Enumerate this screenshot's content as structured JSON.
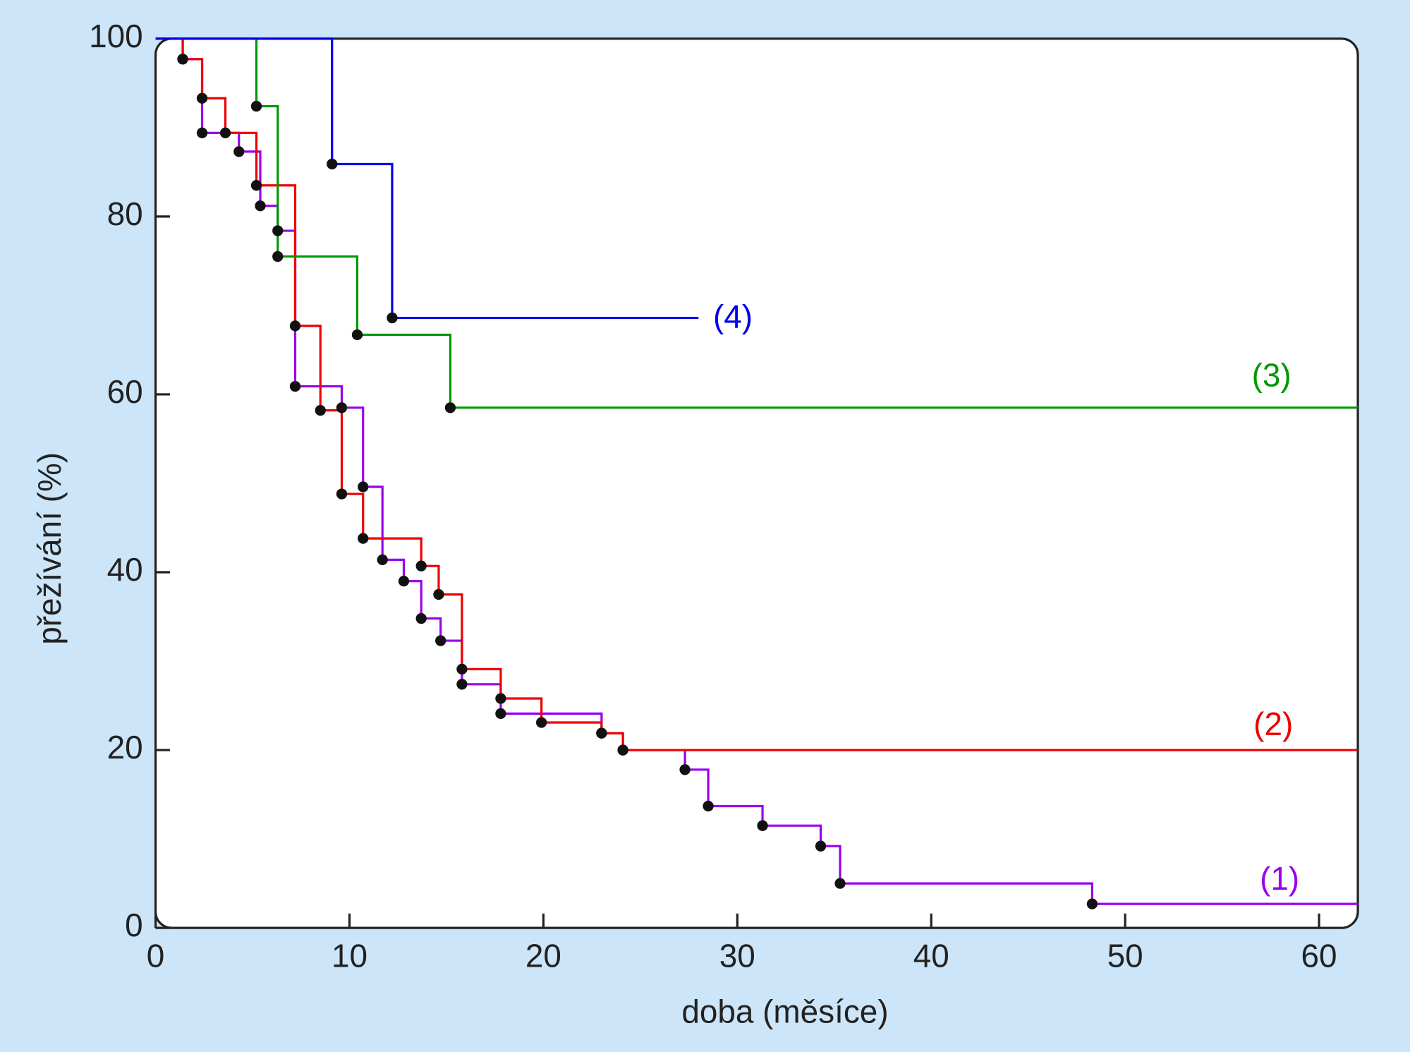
{
  "chart_data": {
    "type": "step",
    "xlabel": "doba (měsíce)",
    "ylabel": "přežívání (%)",
    "xlim": [
      0,
      62
    ],
    "ylim": [
      0,
      100
    ],
    "xticks": [
      0,
      10,
      20,
      30,
      40,
      50,
      60
    ],
    "yticks": [
      0,
      20,
      40,
      60,
      80,
      100
    ],
    "series": [
      {
        "name": "(1)",
        "color": "#9900ee",
        "x": [
          0,
          1.4,
          2.4,
          4.3,
          5.4,
          6.3,
          7.2,
          9.6,
          10.7,
          11.7,
          12.8,
          13.7,
          14.7,
          15.8,
          17.8,
          23.0,
          24.1,
          27.3,
          28.5,
          31.3,
          34.3,
          35.3,
          48.3,
          62
        ],
        "values": [
          100,
          97.7,
          89.4,
          87.3,
          81.2,
          78.4,
          60.9,
          58.5,
          49.6,
          41.4,
          39.0,
          34.8,
          32.3,
          27.4,
          24.1,
          21.9,
          20.0,
          17.8,
          13.7,
          11.5,
          9.2,
          5.0,
          2.7,
          2.7
        ]
      },
      {
        "name": "(2)",
        "color": "#ee0000",
        "x": [
          0,
          1.4,
          2.4,
          3.6,
          5.2,
          7.2,
          8.5,
          9.6,
          10.7,
          13.7,
          14.6,
          15.8,
          17.8,
          19.9,
          23.0,
          24.1,
          62
        ],
        "values": [
          100,
          97.7,
          93.3,
          89.4,
          83.5,
          67.7,
          58.2,
          48.8,
          43.8,
          40.7,
          37.5,
          29.1,
          25.8,
          23.1,
          21.9,
          20.0,
          20.0
        ]
      },
      {
        "name": "(3)",
        "color": "#009900",
        "x": [
          0,
          5.2,
          6.3,
          10.4,
          15.2,
          62
        ],
        "values": [
          100,
          92.4,
          75.5,
          66.7,
          58.5,
          58.5
        ]
      },
      {
        "name": "(4)",
        "color": "#0000ee",
        "x": [
          0,
          9.1,
          12.2,
          28.0
        ],
        "values": [
          100,
          85.9,
          68.6,
          68.6
        ]
      }
    ]
  }
}
